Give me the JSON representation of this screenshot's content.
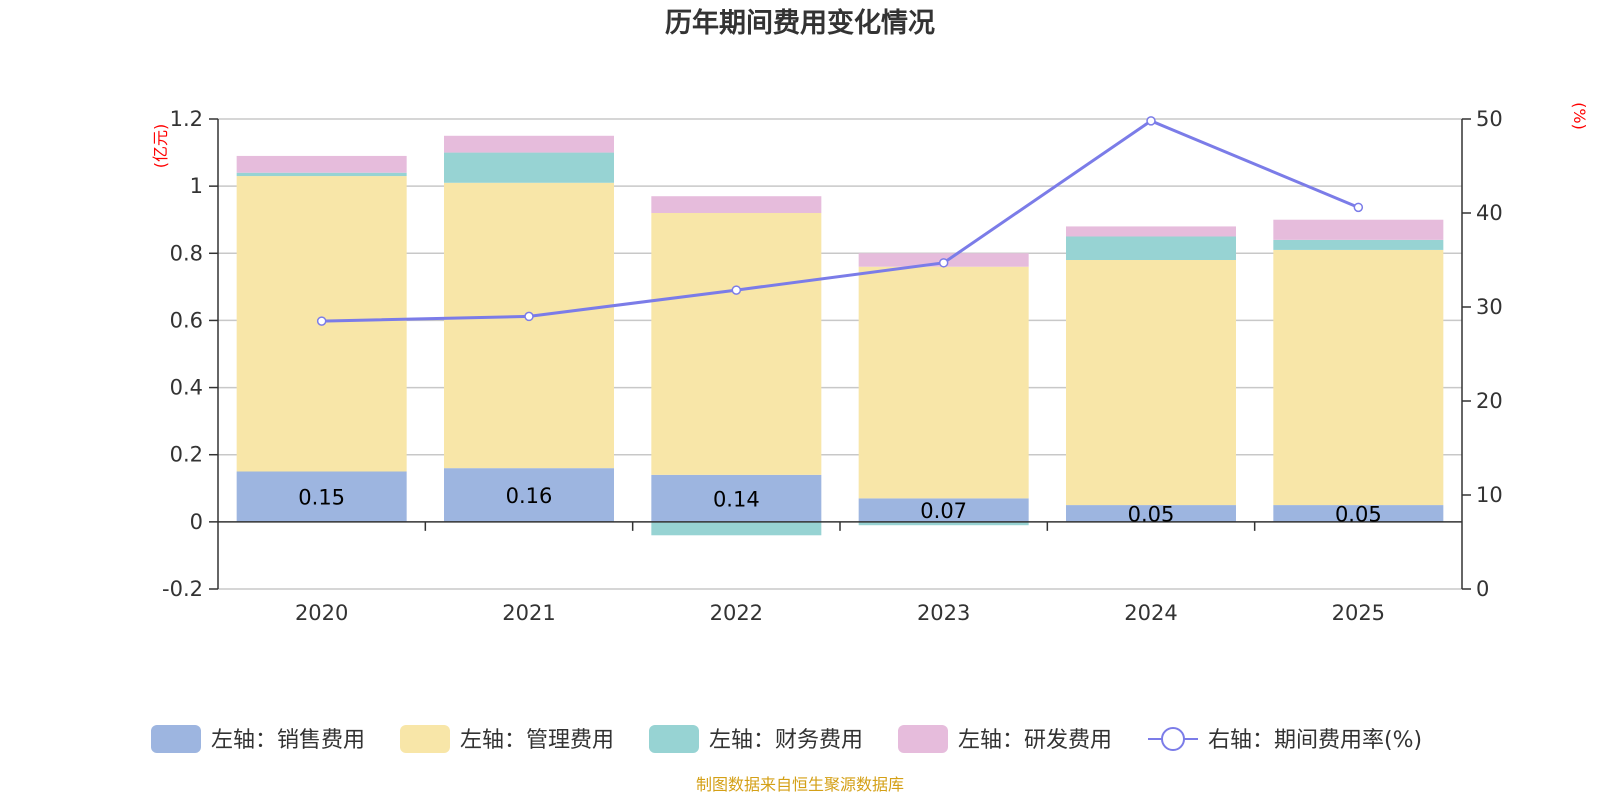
{
  "title": "历年期间费用变化情况",
  "left_unit": "(亿元)",
  "right_unit": "(%)",
  "source": "制图数据来自恒生聚源数据库",
  "colors": {
    "sales": "#9db5e0",
    "admin": "#f8e6a8",
    "finance": "#97d3d3",
    "rnd": "#e6bcdc",
    "rate": "#7b7ce8",
    "grid": "#c8c8c8",
    "axis": "#333333"
  },
  "legend": [
    {
      "key": "sales",
      "label": "左轴：销售费用",
      "type": "rect"
    },
    {
      "key": "admin",
      "label": "左轴：管理费用",
      "type": "rect"
    },
    {
      "key": "finance",
      "label": "左轴：财务费用",
      "type": "rect"
    },
    {
      "key": "rnd",
      "label": "左轴：研发费用",
      "type": "rect"
    },
    {
      "key": "rate",
      "label": "右轴：期间费用率(%)",
      "type": "line"
    }
  ],
  "chart_data": {
    "type": "bar",
    "stacked": true,
    "categories": [
      "2020",
      "2021",
      "2022",
      "2023",
      "2024",
      "2025"
    ],
    "series": [
      {
        "key": "sales",
        "name": "左轴：销售费用",
        "axis": "left",
        "values": [
          0.15,
          0.16,
          0.14,
          0.07,
          0.05,
          0.05
        ],
        "labels": [
          "0.15",
          "0.16",
          "0.14",
          "0.07",
          "0.05",
          "0.05"
        ]
      },
      {
        "key": "admin",
        "name": "左轴：管理费用",
        "axis": "left",
        "values": [
          0.88,
          0.85,
          0.78,
          0.69,
          0.73,
          0.76
        ]
      },
      {
        "key": "finance",
        "name": "左轴：财务费用",
        "axis": "left",
        "values": [
          0.01,
          0.09,
          -0.04,
          -0.01,
          0.07,
          0.03
        ]
      },
      {
        "key": "rnd",
        "name": "左轴：研发费用",
        "axis": "left",
        "values": [
          0.05,
          0.05,
          0.05,
          0.04,
          0.03,
          0.06
        ]
      },
      {
        "key": "rate",
        "name": "右轴：期间费用率(%)",
        "axis": "right",
        "type": "line",
        "values": [
          28.5,
          29.0,
          31.8,
          34.7,
          49.8,
          40.6
        ]
      }
    ],
    "left_axis": {
      "min": -0.2,
      "max": 1.2,
      "ticks": [
        "-0.2",
        "0",
        "0.2",
        "0.4",
        "0.6",
        "0.8",
        "1",
        "1.2"
      ]
    },
    "right_axis": {
      "min": 0,
      "max": 50,
      "ticks": [
        "0",
        "10",
        "20",
        "30",
        "40",
        "50"
      ]
    },
    "grid": true,
    "legend_position": "bottom"
  }
}
